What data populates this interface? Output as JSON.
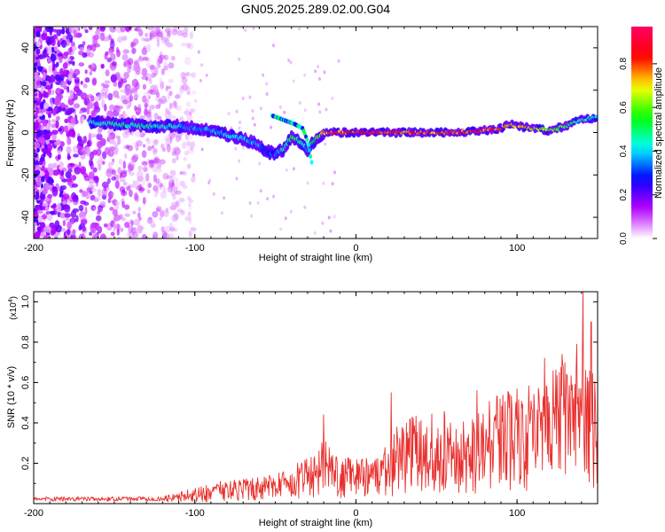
{
  "title": "GN05.2025.289.02.00.G04",
  "chart_data": [
    {
      "type": "heatmap",
      "name": "spectrogram",
      "xlabel": "Height of straight line (km)",
      "ylabel": "Frequency (Hz)",
      "xlim": [
        -200,
        150
      ],
      "ylim": [
        -50,
        50
      ],
      "xticks": [
        -200,
        -100,
        0,
        100
      ],
      "xtick_labels": [
        "-200",
        "-100",
        "0",
        "100"
      ],
      "yticks": [
        -40,
        -20,
        0,
        20,
        40
      ],
      "ytick_labels": [
        "-40",
        "-20",
        "0",
        "20",
        "40"
      ],
      "colorbar": {
        "label": "Normalized spectral amplitude",
        "range": [
          0,
          0.97
        ],
        "ticks": [
          0.0,
          0.2,
          0.4,
          0.6,
          0.8
        ],
        "tick_labels": [
          "0.0",
          "0.2",
          "0.4",
          "0.6",
          "0.8"
        ],
        "colors": [
          "#ffffff",
          "#b700ff",
          "#0000ff",
          "#00ffff",
          "#00ff00",
          "#ffff00",
          "#ff0000",
          "#ff0066"
        ]
      },
      "ridge": {
        "x": [
          -165,
          -150,
          -130,
          -110,
          -100,
          -90,
          -80,
          -70,
          -60,
          -55,
          -50,
          -45,
          -40,
          -35,
          -30,
          -25,
          -20,
          -10,
          0,
          20,
          40,
          60,
          80,
          90,
          95,
          100,
          110,
          120,
          130,
          140,
          150
        ],
        "y": [
          5,
          4,
          3,
          3,
          2,
          1,
          -1,
          -3,
          -6,
          -9,
          -10,
          -8,
          -2,
          -4,
          -8,
          -3,
          0,
          0,
          0,
          0,
          0,
          0,
          1,
          2,
          4,
          3,
          2,
          1,
          3,
          6,
          7
        ],
        "peak": [
          0.45,
          0.5,
          0.5,
          0.45,
          0.4,
          0.4,
          0.45,
          0.45,
          0.4,
          0.35,
          0.35,
          0.5,
          0.6,
          0.55,
          0.4,
          0.6,
          0.85,
          0.9,
          0.95,
          0.9,
          0.85,
          0.85,
          0.9,
          0.9,
          0.8,
          0.8,
          0.75,
          0.7,
          0.6,
          0.5,
          0.45
        ]
      },
      "branch": {
        "x": [
          -52,
          -45,
          -38,
          -33,
          -30,
          -27
        ],
        "y": [
          8,
          6,
          4,
          2,
          -4,
          -16
        ]
      }
    },
    {
      "type": "line",
      "name": "snr",
      "xlabel": "Height of straight line (km)",
      "ylabel": "SNR (10 * v/v)",
      "yscale_label": "(x10",
      "yscale_exponent": "4",
      "yscale_suffix": ")",
      "xlim": [
        -200,
        150
      ],
      "ylim": [
        0,
        1.05
      ],
      "xticks": [
        -200,
        -100,
        0,
        100
      ],
      "xtick_labels": [
        "-200",
        "-100",
        "0",
        "100"
      ],
      "yticks": [
        0.2,
        0.4,
        0.6,
        0.8,
        1.0
      ],
      "ytick_labels": [
        "0.2",
        "0.4",
        "0.6",
        "0.8",
        "1.0"
      ],
      "color": "#e8302e",
      "envelope": {
        "x": [
          -200,
          -140,
          -120,
          -100,
          -80,
          -60,
          -40,
          -30,
          -20,
          -10,
          0,
          10,
          20,
          25,
          30,
          40,
          50,
          60,
          70,
          80,
          90,
          100,
          110,
          120,
          130,
          140,
          150
        ],
        "y": [
          0.03,
          0.03,
          0.04,
          0.08,
          0.12,
          0.13,
          0.17,
          0.25,
          0.32,
          0.22,
          0.24,
          0.22,
          0.3,
          0.4,
          0.42,
          0.45,
          0.47,
          0.46,
          0.45,
          0.5,
          0.55,
          0.6,
          0.62,
          0.65,
          0.7,
          0.75,
          0.7
        ]
      },
      "spikes": [
        {
          "x": -20,
          "y": 0.44
        },
        {
          "x": 22,
          "y": 0.55
        },
        {
          "x": 75,
          "y": 0.56
        },
        {
          "x": 117,
          "y": 0.72
        },
        {
          "x": 128,
          "y": 0.74
        },
        {
          "x": 137,
          "y": 0.79
        },
        {
          "x": 141,
          "y": 1.05
        },
        {
          "x": 146,
          "y": 0.9
        }
      ]
    }
  ]
}
